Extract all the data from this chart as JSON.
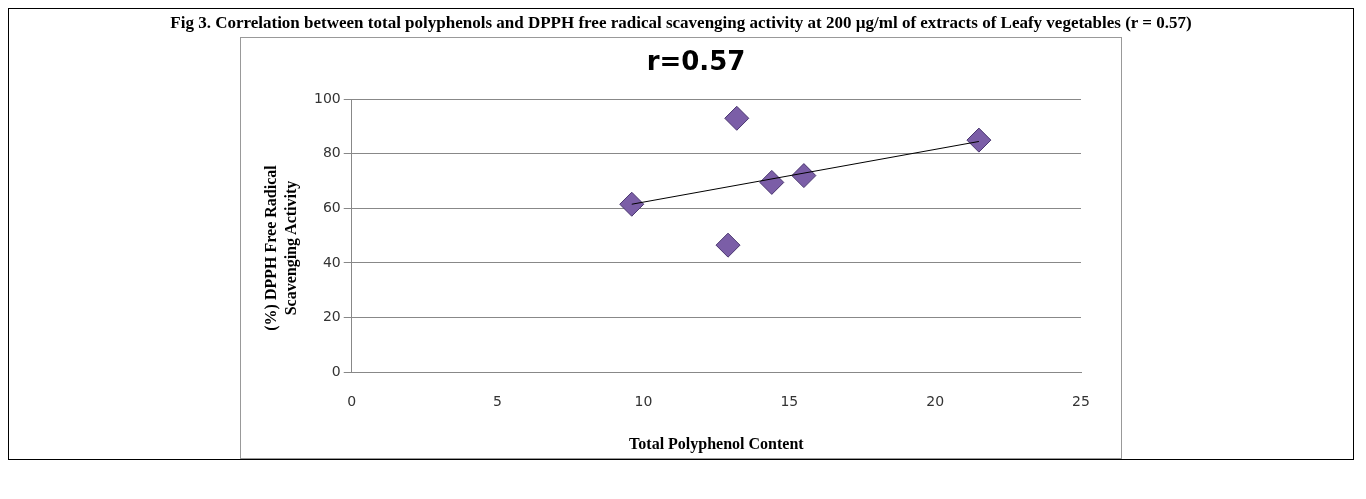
{
  "chart_data": {
    "type": "scatter",
    "title": "Fig 3. Correlation between total polyphenols and DPPH free radical scavenging activity at 200 µg/ml of extracts of Leafy vegetables (r = 0.57)",
    "subtitle": "r=0.57",
    "xlabel": "Total Polyphenol Content",
    "ylabel": "(%) DPPH Free Radical Scavenging Activity",
    "series": [
      {
        "color": "#7b5ea7",
        "x": [
          9.6,
          12.9,
          13.2,
          14.4,
          15.5,
          21.5
        ],
        "values": [
          61.5,
          46.5,
          93,
          69.5,
          72,
          85
        ],
        "marker": "diamond"
      },
      {
        "type": "line",
        "color": "#000000",
        "x": [
          9.6,
          21.5
        ],
        "values": [
          61.5,
          84.5
        ],
        "marker": "none"
      }
    ],
    "xlim": [
      0,
      25
    ],
    "xticks": [
      0,
      5,
      10,
      15,
      20,
      25
    ],
    "ylim": [
      0,
      100
    ],
    "yticks": [
      0,
      20,
      40,
      60,
      80,
      100
    ],
    "grid": "y"
  }
}
